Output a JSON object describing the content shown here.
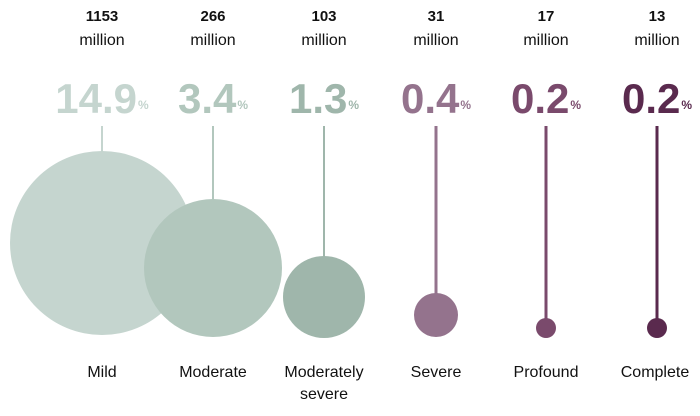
{
  "chart_data": {
    "type": "bubble",
    "unit_label": "million",
    "percent_symbol": "%",
    "categories": [
      "Mild",
      "Moderate",
      "Moderately severe",
      "Severe",
      "Profound",
      "Complete"
    ],
    "people_millions": [
      1153,
      266,
      103,
      31,
      17,
      13
    ],
    "percent": [
      14.9,
      3.4,
      1.3,
      0.4,
      0.2,
      0.2
    ],
    "colors": [
      "#c5d5cf",
      "#b2c7bd",
      "#9fb6ab",
      "#94738d",
      "#7a4a6c",
      "#5a2a4e"
    ]
  },
  "columns": [
    {
      "count": "1153",
      "unit": "million",
      "percent": "14.9",
      "label": "Mild"
    },
    {
      "count": "266",
      "unit": "million",
      "percent": "3.4",
      "label": "Moderate"
    },
    {
      "count": "103",
      "unit": "million",
      "percent": "1.3",
      "label": "Moderately severe"
    },
    {
      "count": "31",
      "unit": "million",
      "percent": "0.4",
      "label": "Severe"
    },
    {
      "count": "17",
      "unit": "million",
      "percent": "0.2",
      "label": "Profound"
    },
    {
      "count": "13",
      "unit": "million",
      "percent": "0.2",
      "label": "Complete"
    }
  ]
}
